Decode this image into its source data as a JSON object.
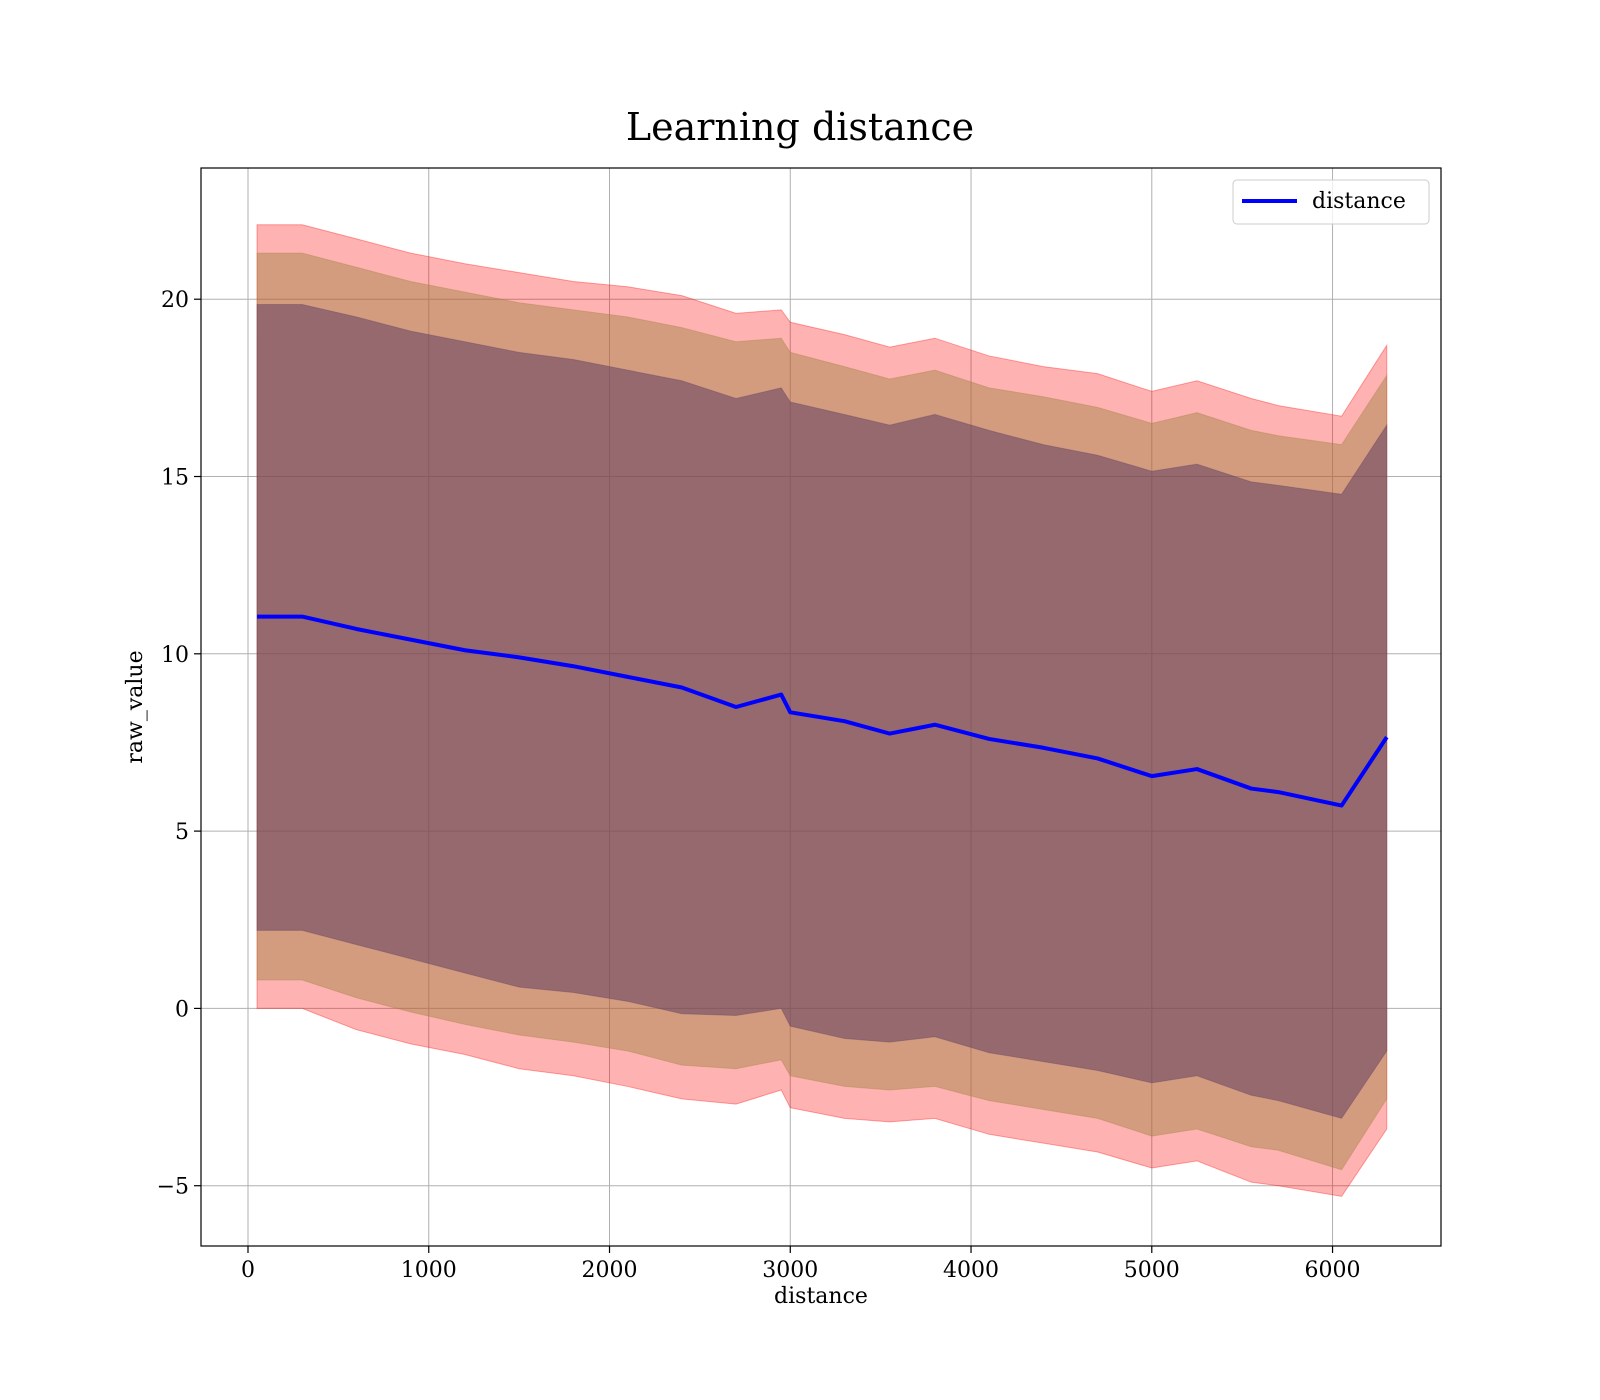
{
  "chart_data": {
    "type": "line",
    "title": "Learning distance",
    "xlabel": "distance",
    "ylabel": "raw_value",
    "xlim": [
      -260,
      6600
    ],
    "ylim": [
      -6.7,
      23.7
    ],
    "xticks": [
      0,
      1000,
      2000,
      3000,
      4000,
      5000,
      6000
    ],
    "yticks": [
      -5,
      0,
      5,
      10,
      15,
      20
    ],
    "xtick_labels": [
      "0",
      "1000",
      "2000",
      "3000",
      "4000",
      "5000",
      "6000"
    ],
    "ytick_labels": [
      "−5",
      "0",
      "5",
      "10",
      "15",
      "20"
    ],
    "grid": true,
    "legend": {
      "position": "top-right",
      "entries": [
        "distance"
      ]
    },
    "colors": {
      "line": "#0000ff",
      "band_outer": "#ff0000",
      "band_middle": "#a08040",
      "band_inner": "#604060"
    },
    "x": [
      50,
      300,
      600,
      900,
      1200,
      1500,
      1800,
      2100,
      2400,
      2700,
      2950,
      3000,
      3300,
      3550,
      3800,
      4100,
      4400,
      4700,
      5000,
      5250,
      5550,
      5700,
      6050,
      6300
    ],
    "series": [
      {
        "name": "distance",
        "values": [
          11.05,
          11.05,
          10.7,
          10.4,
          10.1,
          9.9,
          9.65,
          9.35,
          9.05,
          8.5,
          8.85,
          8.35,
          8.1,
          7.75,
          8.0,
          7.6,
          7.35,
          7.05,
          6.55,
          6.75,
          6.2,
          6.1,
          5.72,
          7.65
        ]
      }
    ],
    "bands": [
      {
        "name": "band-outer",
        "lower": [
          0.0,
          0.0,
          -0.6,
          -1.0,
          -1.3,
          -1.7,
          -1.9,
          -2.2,
          -2.55,
          -2.7,
          -2.3,
          -2.8,
          -3.1,
          -3.2,
          -3.1,
          -3.55,
          -3.8,
          -4.05,
          -4.5,
          -4.3,
          -4.9,
          -5.0,
          -5.3,
          -3.4
        ],
        "upper": [
          22.1,
          22.1,
          21.7,
          21.3,
          21.0,
          20.75,
          20.5,
          20.35,
          20.1,
          19.6,
          19.7,
          19.35,
          19.0,
          18.65,
          18.9,
          18.4,
          18.1,
          17.9,
          17.4,
          17.7,
          17.2,
          17.0,
          16.7,
          18.7
        ]
      },
      {
        "name": "band-middle",
        "lower": [
          0.8,
          0.8,
          0.3,
          -0.1,
          -0.45,
          -0.75,
          -0.95,
          -1.2,
          -1.6,
          -1.7,
          -1.45,
          -1.9,
          -2.2,
          -2.3,
          -2.2,
          -2.6,
          -2.85,
          -3.1,
          -3.6,
          -3.4,
          -3.9,
          -4.0,
          -4.55,
          -2.55
        ],
        "upper": [
          21.3,
          21.3,
          20.9,
          20.5,
          20.2,
          19.9,
          19.7,
          19.5,
          19.2,
          18.8,
          18.9,
          18.5,
          18.1,
          17.75,
          18.0,
          17.5,
          17.25,
          16.95,
          16.5,
          16.8,
          16.3,
          16.15,
          15.9,
          17.85
        ]
      },
      {
        "name": "band-inner",
        "lower": [
          2.2,
          2.2,
          1.8,
          1.4,
          1.0,
          0.6,
          0.45,
          0.2,
          -0.15,
          -0.2,
          0.0,
          -0.5,
          -0.85,
          -0.95,
          -0.8,
          -1.25,
          -1.5,
          -1.75,
          -2.1,
          -1.9,
          -2.45,
          -2.6,
          -3.1,
          -1.2
        ],
        "upper": [
          19.85,
          19.85,
          19.5,
          19.1,
          18.8,
          18.5,
          18.3,
          18.0,
          17.7,
          17.2,
          17.5,
          17.1,
          16.75,
          16.45,
          16.75,
          16.3,
          15.9,
          15.6,
          15.15,
          15.35,
          14.85,
          14.75,
          14.5,
          16.45
        ]
      }
    ]
  }
}
